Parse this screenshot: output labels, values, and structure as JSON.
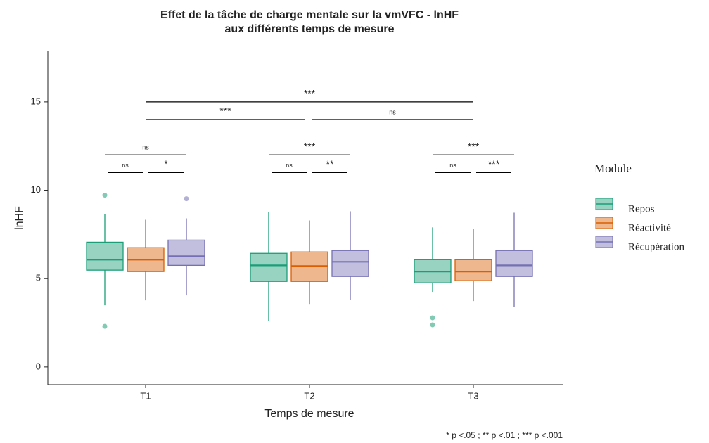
{
  "chart_data": {
    "type": "boxplot",
    "title": [
      "Effet de la tâche de charge mentale sur la vmVFC - lnHF",
      "aux différents temps de mesure"
    ],
    "xlabel": "Temps de mesure",
    "ylabel": "lnHF",
    "categories": [
      "T1",
      "T2",
      "T3"
    ],
    "ylim": [
      -1,
      17.9
    ],
    "yticks": [
      0,
      5,
      10,
      15
    ],
    "legend_title": "Module",
    "legend_position": "right",
    "series": [
      {
        "name": "Repos",
        "color": "#1b9e77",
        "stats": [
          {
            "min": 3.49,
            "q1": 5.48,
            "median": 6.07,
            "q3": 7.06,
            "max": 8.65,
            "outliers": [
              9.72,
              2.3
            ]
          },
          {
            "min": 2.62,
            "q1": 4.84,
            "median": 5.75,
            "q3": 6.43,
            "max": 8.77,
            "outliers": []
          },
          {
            "min": 4.25,
            "q1": 4.76,
            "median": 5.4,
            "q3": 6.07,
            "max": 7.9,
            "outliers": [
              2.78,
              2.38
            ]
          }
        ]
      },
      {
        "name": "Réactivité",
        "color": "#d95f02",
        "stats": [
          {
            "min": 3.77,
            "q1": 5.4,
            "median": 6.07,
            "q3": 6.75,
            "max": 8.33,
            "outliers": []
          },
          {
            "min": 3.53,
            "q1": 4.84,
            "median": 5.71,
            "q3": 6.51,
            "max": 8.29,
            "outliers": []
          },
          {
            "min": 3.73,
            "q1": 4.88,
            "median": 5.4,
            "q3": 6.07,
            "max": 7.82,
            "outliers": []
          }
        ]
      },
      {
        "name": "Récupération",
        "color": "#7570b3",
        "stats": [
          {
            "min": 4.05,
            "q1": 5.75,
            "median": 6.27,
            "q3": 7.18,
            "max": 8.41,
            "outliers": [
              9.52
            ]
          },
          {
            "min": 3.81,
            "q1": 5.12,
            "median": 5.95,
            "q3": 6.59,
            "max": 8.81,
            "outliers": []
          },
          {
            "min": 3.41,
            "q1": 5.12,
            "median": 5.75,
            "q3": 6.59,
            "max": 8.73,
            "outliers": []
          }
        ]
      }
    ],
    "comparisons": [
      {
        "group": "T1",
        "from": "Repos",
        "to": "Réactivité",
        "label": "ns",
        "y": 11
      },
      {
        "group": "T1",
        "from": "Réactivité",
        "to": "Récupération",
        "label": "*",
        "y": 11
      },
      {
        "group": "T1",
        "from": "Repos",
        "to": "Récupération",
        "label": "ns",
        "y": 12
      },
      {
        "group": "T2",
        "from": "Repos",
        "to": "Réactivité",
        "label": "ns",
        "y": 11
      },
      {
        "group": "T2",
        "from": "Réactivité",
        "to": "Récupération",
        "label": "**",
        "y": 11
      },
      {
        "group": "T2",
        "from": "Repos",
        "to": "Récupération",
        "label": "***",
        "y": 12
      },
      {
        "group": "T3",
        "from": "Repos",
        "to": "Réactivité",
        "label": "ns",
        "y": 11
      },
      {
        "group": "T3",
        "from": "Réactivité",
        "to": "Récupération",
        "label": "***",
        "y": 11
      },
      {
        "group": "T3",
        "from": "Repos",
        "to": "Récupération",
        "label": "***",
        "y": 12
      },
      {
        "from_group": "T1",
        "to_group": "T2",
        "label": "***",
        "y": 14
      },
      {
        "from_group": "T2",
        "to_group": "T3",
        "label": "ns",
        "y": 14
      },
      {
        "from_group": "T1",
        "to_group": "T3",
        "label": "***",
        "y": 15
      }
    ],
    "caption": "* p <.05 ; ** p <.01 ; *** p <.001"
  }
}
